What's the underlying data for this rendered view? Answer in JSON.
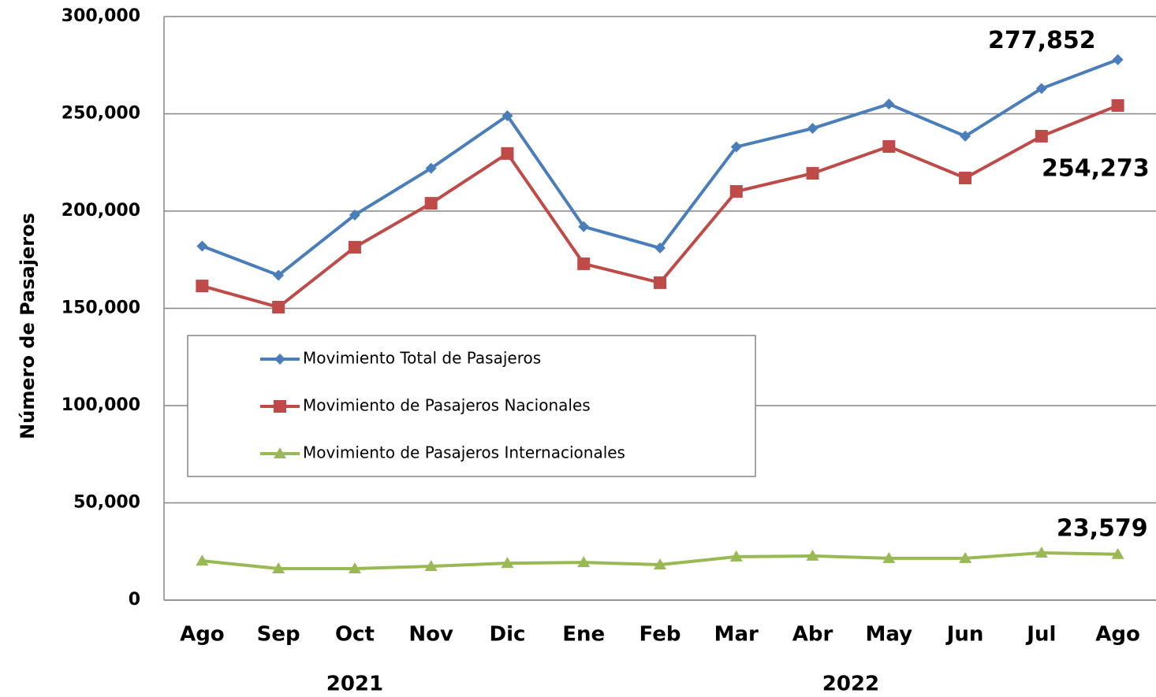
{
  "chart_data": {
    "type": "line",
    "y_label": "Número de Pasajeros",
    "categories": [
      "Ago",
      "Sep",
      "Oct",
      "Nov",
      "Dic",
      "Ene",
      "Feb",
      "Mar",
      "Abr",
      "May",
      "Jun",
      "Jul",
      "Ago"
    ],
    "category_groups": [
      {
        "label": "2021",
        "from": 0,
        "to": 4
      },
      {
        "label": "2022",
        "from": 5,
        "to": 12
      }
    ],
    "series": [
      {
        "name": "Movimiento Total de Pasajeros",
        "color": "#4a7ebb",
        "marker": "diamond",
        "values": [
          182000,
          167000,
          198000,
          222000,
          249000,
          192000,
          181000,
          233000,
          242500,
          255000,
          238500,
          263000,
          277852
        ],
        "value_labels": [
          null,
          null,
          null,
          null,
          null,
          null,
          null,
          null,
          null,
          null,
          null,
          null,
          "277,852"
        ]
      },
      {
        "name": "Movimiento de Pasajeros Nacionales",
        "color": "#be4b48",
        "marker": "square",
        "values": [
          161500,
          150600,
          181400,
          204000,
          229600,
          172900,
          163200,
          210100,
          219400,
          233200,
          217000,
          238500,
          254273
        ],
        "value_labels": [
          null,
          null,
          null,
          null,
          null,
          null,
          null,
          null,
          null,
          null,
          null,
          null,
          "254,273"
        ]
      },
      {
        "name": "Movimiento de Pasajeros Internacionales",
        "color": "#98b954",
        "marker": "triangle",
        "values": [
          20200,
          16200,
          16200,
          17400,
          19000,
          19400,
          18200,
          22300,
          22700,
          21500,
          21500,
          24300,
          23579
        ],
        "value_labels": [
          null,
          null,
          null,
          null,
          null,
          null,
          null,
          null,
          null,
          null,
          null,
          null,
          "23,579"
        ]
      }
    ],
    "ylim": [
      0,
      300000
    ],
    "yticks": [
      0,
      {
        "value": 50000,
        "label": "50,000"
      },
      {
        "value": 100000,
        "label": "100,000"
      },
      {
        "value": 150000,
        "label": "150,000"
      },
      {
        "value": 200000,
        "label": "200,000"
      },
      {
        "value": 250000,
        "label": "250,000"
      },
      {
        "value": 300000,
        "label": "300,000"
      }
    ],
    "grid": true,
    "legend": "middle-left"
  }
}
